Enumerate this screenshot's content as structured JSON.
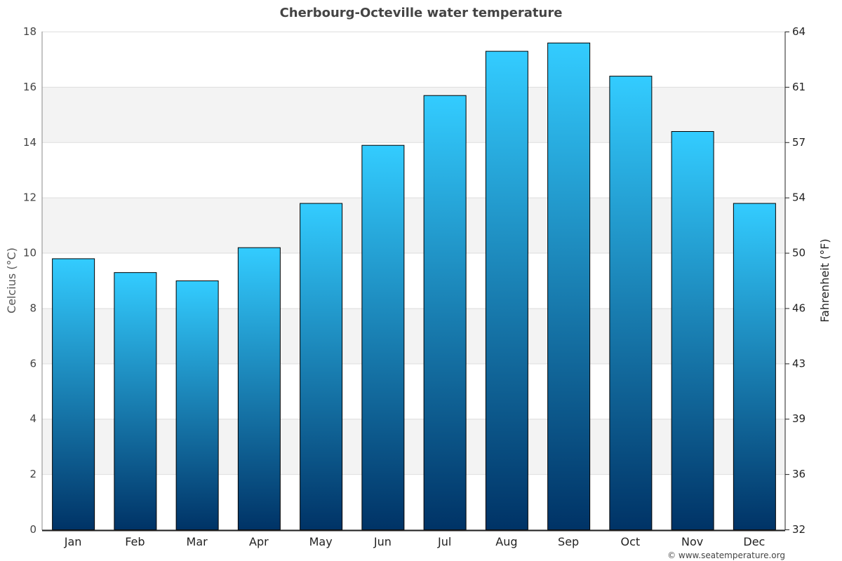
{
  "chart_data": {
    "type": "bar",
    "title": "Cherbourg-Octeville water temperature",
    "categories": [
      "Jan",
      "Feb",
      "Mar",
      "Apr",
      "May",
      "Jun",
      "Jul",
      "Aug",
      "Sep",
      "Oct",
      "Nov",
      "Dec"
    ],
    "values": [
      9.8,
      9.3,
      9.0,
      10.2,
      11.8,
      13.9,
      15.7,
      17.3,
      17.6,
      16.4,
      14.4,
      11.8
    ],
    "ylabel": "Celcius (°C)",
    "y2label": "Fahrenheit (°F)",
    "ylim": [
      0,
      18
    ],
    "yticks": [
      0,
      2,
      4,
      6,
      8,
      10,
      12,
      14,
      16,
      18
    ],
    "y2ticks": [
      "32",
      "36",
      "39",
      "43",
      "46",
      "50",
      "54",
      "57",
      "61",
      "64"
    ],
    "grid": true,
    "colors": {
      "bar_top": "#33ccff",
      "bar_bottom": "#003366",
      "band": "#f3f3f3"
    }
  },
  "credit": "© www.seatemperature.org"
}
